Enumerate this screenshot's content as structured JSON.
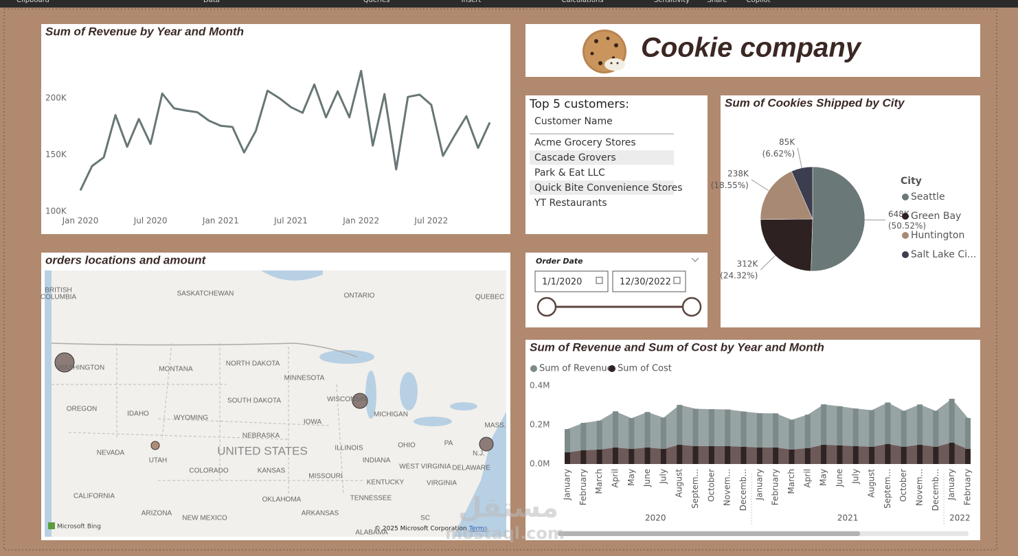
{
  "ribbon": {
    "items": [
      "Clipboard",
      "Data",
      "Queries",
      "Insert",
      "Calculations",
      "Sensitivity",
      "Share",
      "Copilot"
    ]
  },
  "revenue_line": {
    "type": "line",
    "title": "Sum of Revenue by Year and Month",
    "categories": [
      "Jan 2020",
      null,
      null,
      null,
      null,
      null,
      "Jul 2020",
      null,
      null,
      null,
      null,
      null,
      "Jan 2021",
      null,
      null,
      null,
      null,
      null,
      "Jul 2021",
      null,
      null,
      null,
      null,
      null,
      "Jan 2022",
      null,
      null,
      null,
      null,
      null,
      "Jul 2022",
      null,
      null,
      null,
      null,
      null
    ],
    "values": [
      118500,
      140000,
      147600,
      185000,
      157000,
      181500,
      159500,
      204000,
      191000,
      189000,
      187500,
      180000,
      175500,
      174500,
      152000,
      171000,
      206500,
      200000,
      192000,
      187000,
      212000,
      183000,
      206000,
      183000,
      224000,
      158000,
      203500,
      137000,
      201000,
      203000,
      194000,
      149000,
      167000,
      184000,
      156000,
      178500
    ],
    "color": "#687676",
    "ylim": [
      97500,
      229000
    ],
    "yticks": [
      {
        "value": 100000,
        "label": "100K"
      },
      {
        "value": 150000,
        "label": "150K"
      },
      {
        "value": 200000,
        "label": "200K"
      }
    ]
  },
  "header": {
    "title": "Cookie company"
  },
  "top_customers": {
    "title": "Top 5 customers:",
    "column": "Customer Name",
    "rows": [
      "Acme Grocery Stores",
      "Cascade Grovers",
      "Park & Eat LLC",
      "Quick Bite Convenience Stores",
      "YT Restaurants"
    ]
  },
  "cookies_pie": {
    "type": "pie",
    "title": "Sum of Cookies Shipped by City",
    "legend_title": "City",
    "categories": [
      "Seattle",
      "Green Bay",
      "Huntington",
      "Salt Lake Ci..."
    ],
    "values": [
      648000,
      312000,
      238000,
      85000
    ],
    "value_labels": [
      "648K",
      "312K",
      "238K",
      "85K"
    ],
    "percent_labels": [
      "(50.52%)",
      "(24.32%)",
      "(18.55%)",
      "(6.62%)"
    ],
    "colors": [
      "#6b7878",
      "#2d2221",
      "#a88a74",
      "#3d3d50"
    ]
  },
  "map": {
    "title": "orders locations and amount",
    "labels": [
      "BRITISH",
      "COLUMBIA",
      "SASKATCHEWAN",
      "ONTARIO",
      "QUEBEC",
      "WASHINGTON",
      "MONTANA",
      "NORTH DAKOTA",
      "MINNESOTA",
      "SOUTH DAKOTA",
      "WISCONSIN",
      "MICHIGAN",
      "OREGON",
      "IDAHO",
      "WYOMING",
      "IOWA",
      "NEBRASKA",
      "UNITED STATES",
      "NEVADA",
      "UTAH",
      "ILLINOIS",
      "OHIO",
      "PA",
      "N.J.",
      "MASS.",
      "COLORADO",
      "KANSAS",
      "MISSOURI",
      "INDIANA",
      "WEST VIRGINIA",
      "DELAWARE",
      "KENTUCKY",
      "VIRGINIA",
      "CALIFORNIA",
      "OKLAHOMA",
      "TENNESSEE",
      "ARIZONA",
      "NEW MEXICO",
      "ARKANSAS",
      "SC",
      "ALABAMA"
    ],
    "brand": "Microsoft Bing",
    "attribution": "© 2025 Microsoft Corporation",
    "terms": "Terms"
  },
  "date_slicer": {
    "title": "Order Date",
    "start": "1/1/2020",
    "end": "12/30/2022"
  },
  "revenue_cost": {
    "type": "stacked-area",
    "title": "Sum of Revenue and Sum of Cost by Year and Month",
    "categories": [
      "January",
      "February",
      "March",
      "April",
      "May",
      "June",
      "July",
      "August",
      "Septem...",
      "October",
      "Novem...",
      "Decemb...",
      "January",
      "February",
      "March",
      "April",
      "May",
      "June",
      "July",
      "August",
      "Septem...",
      "October",
      "Novem...",
      "Decemb...",
      "January",
      "February"
    ],
    "years": [
      "2020",
      "2021",
      "2022"
    ],
    "series": [
      {
        "name": "Sum of Revenue",
        "color": "#7d8a8a",
        "values": [
          118500,
          140000,
          147600,
          185000,
          157000,
          181500,
          159500,
          204000,
          191000,
          189000,
          187500,
          180000,
          175500,
          174500,
          152000,
          171000,
          206500,
          200000,
          192000,
          187000,
          212000,
          183000,
          206000,
          183000,
          224000,
          158000
        ]
      },
      {
        "name": "Sum of Cost",
        "color": "#2e2423",
        "values": [
          59600,
          70000,
          73700,
          84000,
          77000,
          84000,
          77000,
          98000,
          91000,
          91000,
          91000,
          88000,
          84000,
          84000,
          74000,
          81000,
          98000,
          95000,
          91000,
          88000,
          102000,
          88000,
          98000,
          88000,
          109000,
          77000
        ]
      }
    ],
    "ylim": [
      0,
      424000
    ],
    "yticks": [
      {
        "value": 0,
        "label": "0.0M"
      },
      {
        "value": 200000,
        "label": "0.2M"
      },
      {
        "value": 400000,
        "label": "0.4M"
      }
    ]
  },
  "watermark": {
    "arabic": "مستقل",
    "latin": "mostaql.com"
  }
}
